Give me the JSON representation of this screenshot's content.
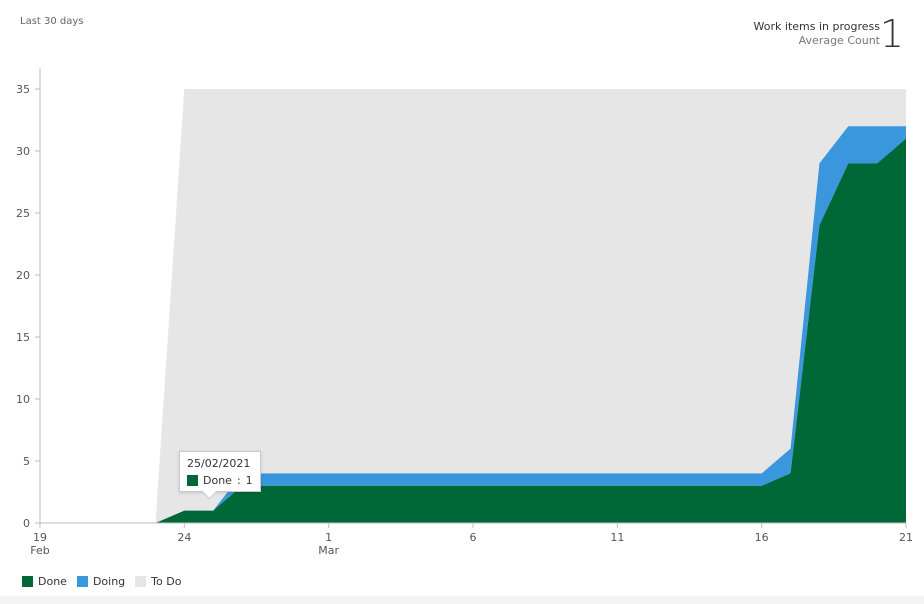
{
  "header": {
    "period": "Last 30 days",
    "metric_title": "Work items in progress",
    "metric_subtitle": "Average Count",
    "metric_value": "1"
  },
  "tooltip": {
    "date": "25/02/2021",
    "series": "Done",
    "value": "1"
  },
  "legend": [
    {
      "name": "Done",
      "color": "#006837"
    },
    {
      "name": "Doing",
      "color": "#3a96dd"
    },
    {
      "name": "To Do",
      "color": "#e6e6e6"
    }
  ],
  "chart_data": {
    "type": "area",
    "stacked": true,
    "x_start": "2021-02-19",
    "x": [
      "19 Feb",
      "20 Feb",
      "21 Feb",
      "22 Feb",
      "23 Feb",
      "24 Feb",
      "25 Feb",
      "26 Feb",
      "27 Feb",
      "28 Feb",
      "1 Mar",
      "2 Mar",
      "3 Mar",
      "4 Mar",
      "5 Mar",
      "6 Mar",
      "7 Mar",
      "8 Mar",
      "9 Mar",
      "10 Mar",
      "11 Mar",
      "12 Mar",
      "13 Mar",
      "14 Mar",
      "15 Mar",
      "16 Mar",
      "17 Mar",
      "18 Mar",
      "19 Mar",
      "20 Mar",
      "21 Mar"
    ],
    "x_ticks": [
      {
        "index": 0,
        "label": "19",
        "sublabel": "Feb"
      },
      {
        "index": 5,
        "label": "24",
        "sublabel": ""
      },
      {
        "index": 10,
        "label": "1",
        "sublabel": "Mar"
      },
      {
        "index": 15,
        "label": "6",
        "sublabel": ""
      },
      {
        "index": 20,
        "label": "11",
        "sublabel": ""
      },
      {
        "index": 25,
        "label": "16",
        "sublabel": ""
      },
      {
        "index": 30,
        "label": "21",
        "sublabel": ""
      }
    ],
    "y_ticks": [
      0,
      5,
      10,
      15,
      20,
      25,
      30,
      35
    ],
    "ylim": [
      0,
      35
    ],
    "series": [
      {
        "name": "Done",
        "color": "#006837",
        "values": [
          0,
          0,
          0,
          0,
          0,
          1,
          1,
          3,
          3,
          3,
          3,
          3,
          3,
          3,
          3,
          3,
          3,
          3,
          3,
          3,
          3,
          3,
          3,
          3,
          3,
          3,
          4,
          24,
          29,
          29,
          31
        ]
      },
      {
        "name": "Doing",
        "color": "#3a96dd",
        "values": [
          0,
          0,
          0,
          0,
          0,
          0,
          0,
          1,
          1,
          1,
          1,
          1,
          1,
          1,
          1,
          1,
          1,
          1,
          1,
          1,
          1,
          1,
          1,
          1,
          1,
          1,
          2,
          5,
          3,
          3,
          1
        ]
      },
      {
        "name": "To Do",
        "color": "#e6e6e6",
        "values": [
          0,
          0,
          0,
          0,
          0,
          34,
          34,
          31,
          31,
          31,
          31,
          31,
          31,
          31,
          31,
          31,
          31,
          31,
          31,
          31,
          31,
          31,
          31,
          31,
          31,
          31,
          29,
          6,
          3,
          3,
          3
        ]
      }
    ],
    "grid": false,
    "legend_position": "bottom-left"
  }
}
